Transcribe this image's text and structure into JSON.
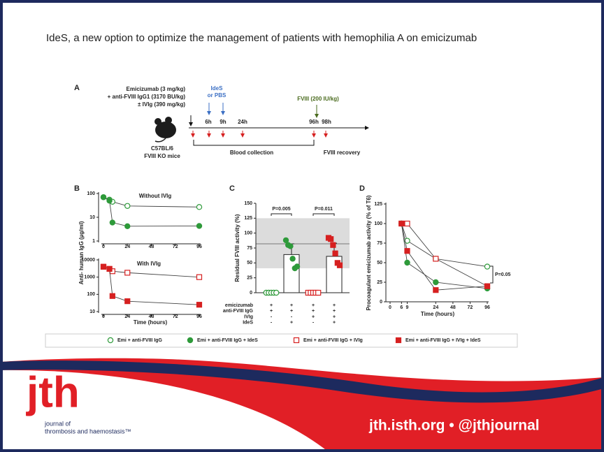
{
  "header": {
    "title": "IdeS, a new option to optimize the management of patients with hemophilia A on emicizumab"
  },
  "panel_a": {
    "label": "A",
    "dosing": [
      "Emicizumab (3 mg/kg)",
      "+ anti-FVIII IgG1 (3170 BU/kg)",
      "± IVIg (390 mg/kg)"
    ],
    "ides": [
      "IdeS",
      "or PBS"
    ],
    "fviii": "FVIII (200 IU/kg)",
    "timepoints": [
      "6h",
      "9h",
      "24h",
      "96h",
      "98h"
    ],
    "mouse": [
      "C57BL/6",
      "FVIII KO mice"
    ],
    "blood": "Blood collection",
    "recovery": "FVIII recovery"
  },
  "panel_b": {
    "label": "B",
    "type": "line",
    "y_label": "Anti- human IgG (µg/ml)",
    "x_label": "Time (hours)",
    "xlim": [
      0,
      96
    ],
    "xticks": [
      0,
      24,
      48,
      72,
      96
    ],
    "plots": [
      {
        "subtitle": "Without IVIg",
        "log": true,
        "ylim": [
          1,
          100
        ],
        "yticks": [
          1,
          10,
          100
        ],
        "series": [
          {
            "color": "#2e9a3a",
            "filled": false,
            "marker": "circle",
            "x": [
              0,
              6,
              9,
              24,
              96
            ],
            "values": [
              70,
              55,
              45,
              30,
              27
            ]
          },
          {
            "color": "#2e9a3a",
            "filled": true,
            "marker": "circle",
            "x": [
              0,
              6,
              9,
              24,
              96
            ],
            "values": [
              70,
              50,
              6,
              4.2,
              4.3
            ]
          }
        ]
      },
      {
        "subtitle": "With IVIg",
        "log": true,
        "ylim": [
          10,
          10000
        ],
        "yticks": [
          10,
          100,
          1000,
          10000
        ],
        "series": [
          {
            "color": "#d62020",
            "filled": false,
            "marker": "square",
            "x": [
              0,
              6,
              9,
              24,
              96
            ],
            "values": [
              4000,
              3000,
              2200,
              1800,
              1000
            ]
          },
          {
            "color": "#d62020",
            "filled": true,
            "marker": "square",
            "x": [
              0,
              6,
              9,
              24,
              96
            ],
            "values": [
              4000,
              3000,
              80,
              40,
              25
            ]
          }
        ]
      }
    ]
  },
  "panel_c": {
    "label": "C",
    "type": "bar",
    "y_label": "Residual FVIII activity (%)",
    "ylim": [
      0,
      150
    ],
    "yticks": [
      0,
      25,
      50,
      75,
      100,
      125,
      150
    ],
    "reference_band": [
      41,
      125
    ],
    "reference_line": 82,
    "bars": [
      {
        "value": 0,
        "error": 0,
        "color": "#2e9a3a",
        "filled": false,
        "marker": "circle",
        "points": [
          0,
          0,
          0,
          0,
          0
        ]
      },
      {
        "value": 64,
        "error": 18,
        "color": "#2e9a3a",
        "filled": true,
        "marker": "circle",
        "points": [
          88,
          80,
          78,
          57,
          41,
          44
        ]
      },
      {
        "value": 0,
        "error": 0,
        "color": "#d62020",
        "filled": false,
        "marker": "square",
        "points": [
          0,
          0,
          0,
          0,
          0
        ]
      },
      {
        "value": 61,
        "error": 22,
        "color": "#d62020",
        "filled": true,
        "marker": "square",
        "points": [
          92,
          90,
          80,
          66,
          50,
          46
        ]
      }
    ],
    "annotations": [
      "P=0.005",
      "P=0.011"
    ],
    "factors": [
      {
        "name": "emicizumab",
        "levels": [
          "+",
          "+",
          "+",
          "+"
        ]
      },
      {
        "name": "anti-FVIII IgG",
        "levels": [
          "+",
          "+",
          "+",
          "+"
        ]
      },
      {
        "name": "IVIg",
        "levels": [
          "-",
          "-",
          "+",
          "+"
        ]
      },
      {
        "name": "IdeS",
        "levels": [
          "-",
          "+",
          "-",
          "+"
        ]
      }
    ]
  },
  "panel_d": {
    "label": "D",
    "type": "line",
    "y_label": "Procoagulant emicizumab activity (% of T6)",
    "x_label": "Time (hours)",
    "xlim": [
      0,
      96
    ],
    "xticks": [
      0,
      6,
      9,
      24,
      48,
      72,
      96
    ],
    "axis_break": true,
    "ylim": [
      0,
      125
    ],
    "yticks": [
      0,
      25,
      50,
      75,
      100,
      125
    ],
    "annotation": "P=0.05",
    "series": [
      {
        "color": "#2e9a3a",
        "filled": false,
        "marker": "circle",
        "x": [
          6,
          9,
          24,
          96
        ],
        "values": [
          100,
          78,
          55,
          45
        ]
      },
      {
        "color": "#2e9a3a",
        "filled": true,
        "marker": "circle",
        "x": [
          6,
          9,
          24,
          96
        ],
        "values": [
          100,
          50,
          25,
          17
        ]
      },
      {
        "color": "#d62020",
        "filled": false,
        "marker": "square",
        "x": [
          6,
          9,
          24,
          96
        ],
        "values": [
          100,
          100,
          55,
          20
        ]
      },
      {
        "color": "#d62020",
        "filled": true,
        "marker": "square",
        "x": [
          6,
          9,
          24,
          96
        ],
        "values": [
          100,
          65,
          15,
          20
        ]
      }
    ]
  },
  "legend": [
    {
      "name": "Emi + anti-FVIII IgG",
      "color": "#2e9a3a",
      "filled": false,
      "marker": "circle"
    },
    {
      "name": "Emi + anti-FVIII IgG + IdeS",
      "color": "#2e9a3a",
      "filled": true,
      "marker": "circle"
    },
    {
      "name": "Emi + anti-FVIII IgG + IVIg",
      "color": "#d62020",
      "filled": false,
      "marker": "square"
    },
    {
      "name": "Emi + anti-FVIII IgG + IVIg + IdeS",
      "color": "#d62020",
      "filled": true,
      "marker": "square"
    }
  ],
  "footer": {
    "logo": "jth",
    "journal": [
      "journal of",
      "thrombosis and haemostasis™"
    ],
    "links": "jth.isth.org • @jthjournal"
  }
}
